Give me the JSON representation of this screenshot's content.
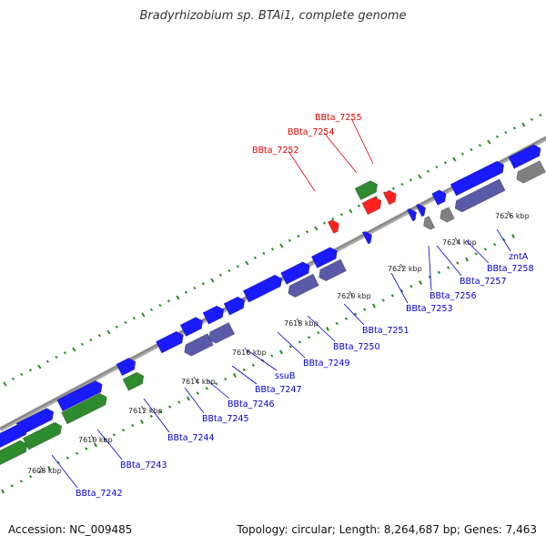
{
  "title": "Bradyrhizobium sp. BTAi1, complete genome",
  "footer": {
    "accession": "Accession: NC_009485",
    "genome_info": "Topology: circular; Length: 8,264,687 bp; Genes: 7,463"
  },
  "colors": {
    "backbone": "#888888",
    "forward_cds": "#1a1aff",
    "reverse_cds": "#5a5aa8",
    "rna": "#2e8b2e",
    "highlight": "#ff2020",
    "grey_feature": "#808080",
    "blue_label": "#0000cc",
    "red_label": "#dd0000",
    "gc_ticks": "#2a8a2a"
  },
  "scale_ticks": [
    "7608 kbp",
    "7610 kbp",
    "7612 kbp",
    "7614 kbp",
    "7616 kbp",
    "7618 kbp",
    "7620 kbp",
    "7622 kbp",
    "7624 kbp",
    "7626 kbp"
  ],
  "gene_labels": [
    {
      "text": "BBta_7242",
      "color": "blue"
    },
    {
      "text": "BBta_7243",
      "color": "blue"
    },
    {
      "text": "BBta_7244",
      "color": "blue"
    },
    {
      "text": "BBta_7245",
      "color": "blue"
    },
    {
      "text": "BBta_7246",
      "color": "blue"
    },
    {
      "text": "BBta_7247",
      "color": "blue"
    },
    {
      "text": "ssuB",
      "color": "blue"
    },
    {
      "text": "BBta_7249",
      "color": "blue"
    },
    {
      "text": "BBta_7250",
      "color": "blue"
    },
    {
      "text": "BBta_7251",
      "color": "blue"
    },
    {
      "text": "BBta_7253",
      "color": "blue"
    },
    {
      "text": "BBta_7256",
      "color": "blue"
    },
    {
      "text": "BBta_7257",
      "color": "blue"
    },
    {
      "text": "BBta_7258",
      "color": "blue"
    },
    {
      "text": "zntA",
      "color": "blue"
    },
    {
      "text": "BBta_7252",
      "color": "red"
    },
    {
      "text": "BBta_7254",
      "color": "red"
    },
    {
      "text": "BBta_7255",
      "color": "red"
    }
  ]
}
